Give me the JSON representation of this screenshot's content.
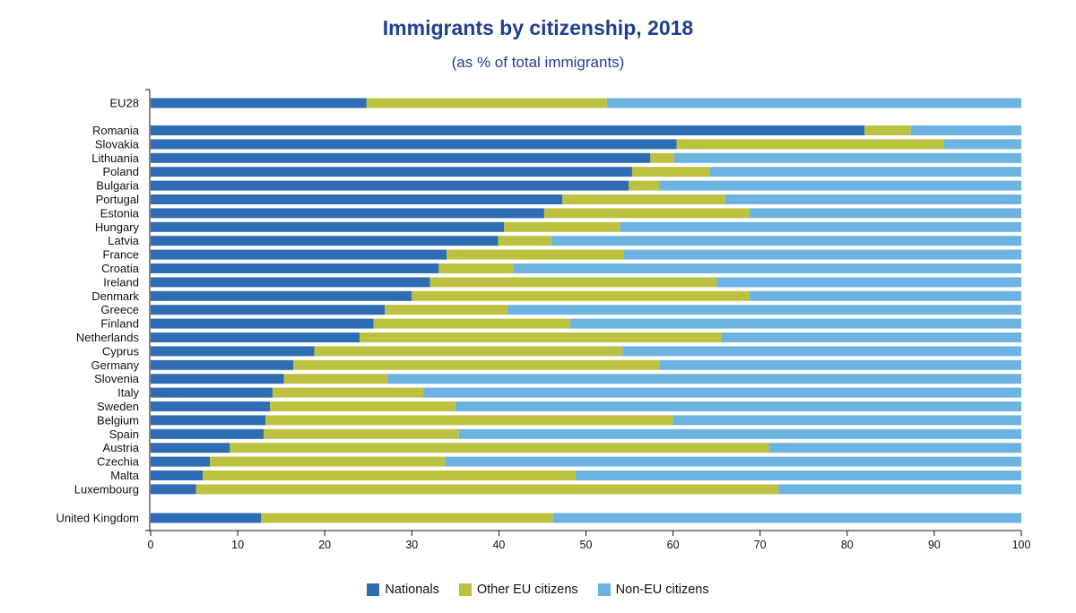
{
  "chart_data": {
    "type": "bar",
    "orientation": "horizontal",
    "stacked": true,
    "title": "Immigrants by citizenship, 2018",
    "subtitle": "(as % of total immigrants)",
    "xlabel": "",
    "ylabel": "",
    "xlim": [
      0,
      100
    ],
    "xticks": [
      "0",
      "10",
      "20",
      "30",
      "40",
      "50",
      "60",
      "70",
      "80",
      "90",
      "100"
    ],
    "grid": false,
    "legend_position": "bottom-center",
    "categories": [
      "EU28",
      "Romania",
      "Slovakia",
      "Lithuania",
      "Poland",
      "Bulgaria",
      "Portugal",
      "Estonia",
      "Hungary",
      "Latvia",
      "France",
      "Croatia",
      "Ireland",
      "Denmark",
      "Greece",
      "Finland",
      "Netherlands",
      "Cyprus",
      "Germany",
      "Slovenia",
      "Italy",
      "Sweden",
      "Belgium",
      "Spain",
      "Austria",
      "Czechia",
      "Malta",
      "Luxembourg",
      "United Kingdom"
    ],
    "series": [
      {
        "name": "Nationals",
        "color": "#2e6db4",
        "values": [
          24.8,
          82.0,
          60.4,
          57.4,
          55.3,
          54.9,
          47.3,
          45.2,
          40.6,
          39.9,
          34.0,
          33.1,
          32.1,
          30.0,
          26.9,
          25.6,
          24.0,
          18.8,
          16.4,
          15.3,
          14.0,
          13.7,
          13.2,
          13.0,
          9.1,
          6.8,
          6.0,
          5.2,
          12.7
        ]
      },
      {
        "name": "Other EU citizens",
        "color": "#bcc23f",
        "values": [
          27.6,
          5.3,
          30.7,
          2.7,
          8.9,
          3.5,
          18.7,
          23.6,
          13.3,
          6.1,
          20.3,
          8.6,
          32.9,
          38.8,
          14.1,
          22.6,
          41.6,
          35.4,
          42.1,
          11.9,
          17.3,
          21.3,
          46.8,
          22.4,
          61.9,
          27.0,
          42.8,
          66.9,
          33.5
        ]
      },
      {
        "name": "Non-EU citizens",
        "color": "#6db3e2",
        "values": [
          47.6,
          12.7,
          8.9,
          39.9,
          35.8,
          41.6,
          34.0,
          31.2,
          46.1,
          54.0,
          45.7,
          58.3,
          35.0,
          31.2,
          59.0,
          51.8,
          34.4,
          45.8,
          41.5,
          72.8,
          68.7,
          65.0,
          40.0,
          64.6,
          29.0,
          66.2,
          51.2,
          27.9,
          53.8
        ]
      }
    ]
  }
}
